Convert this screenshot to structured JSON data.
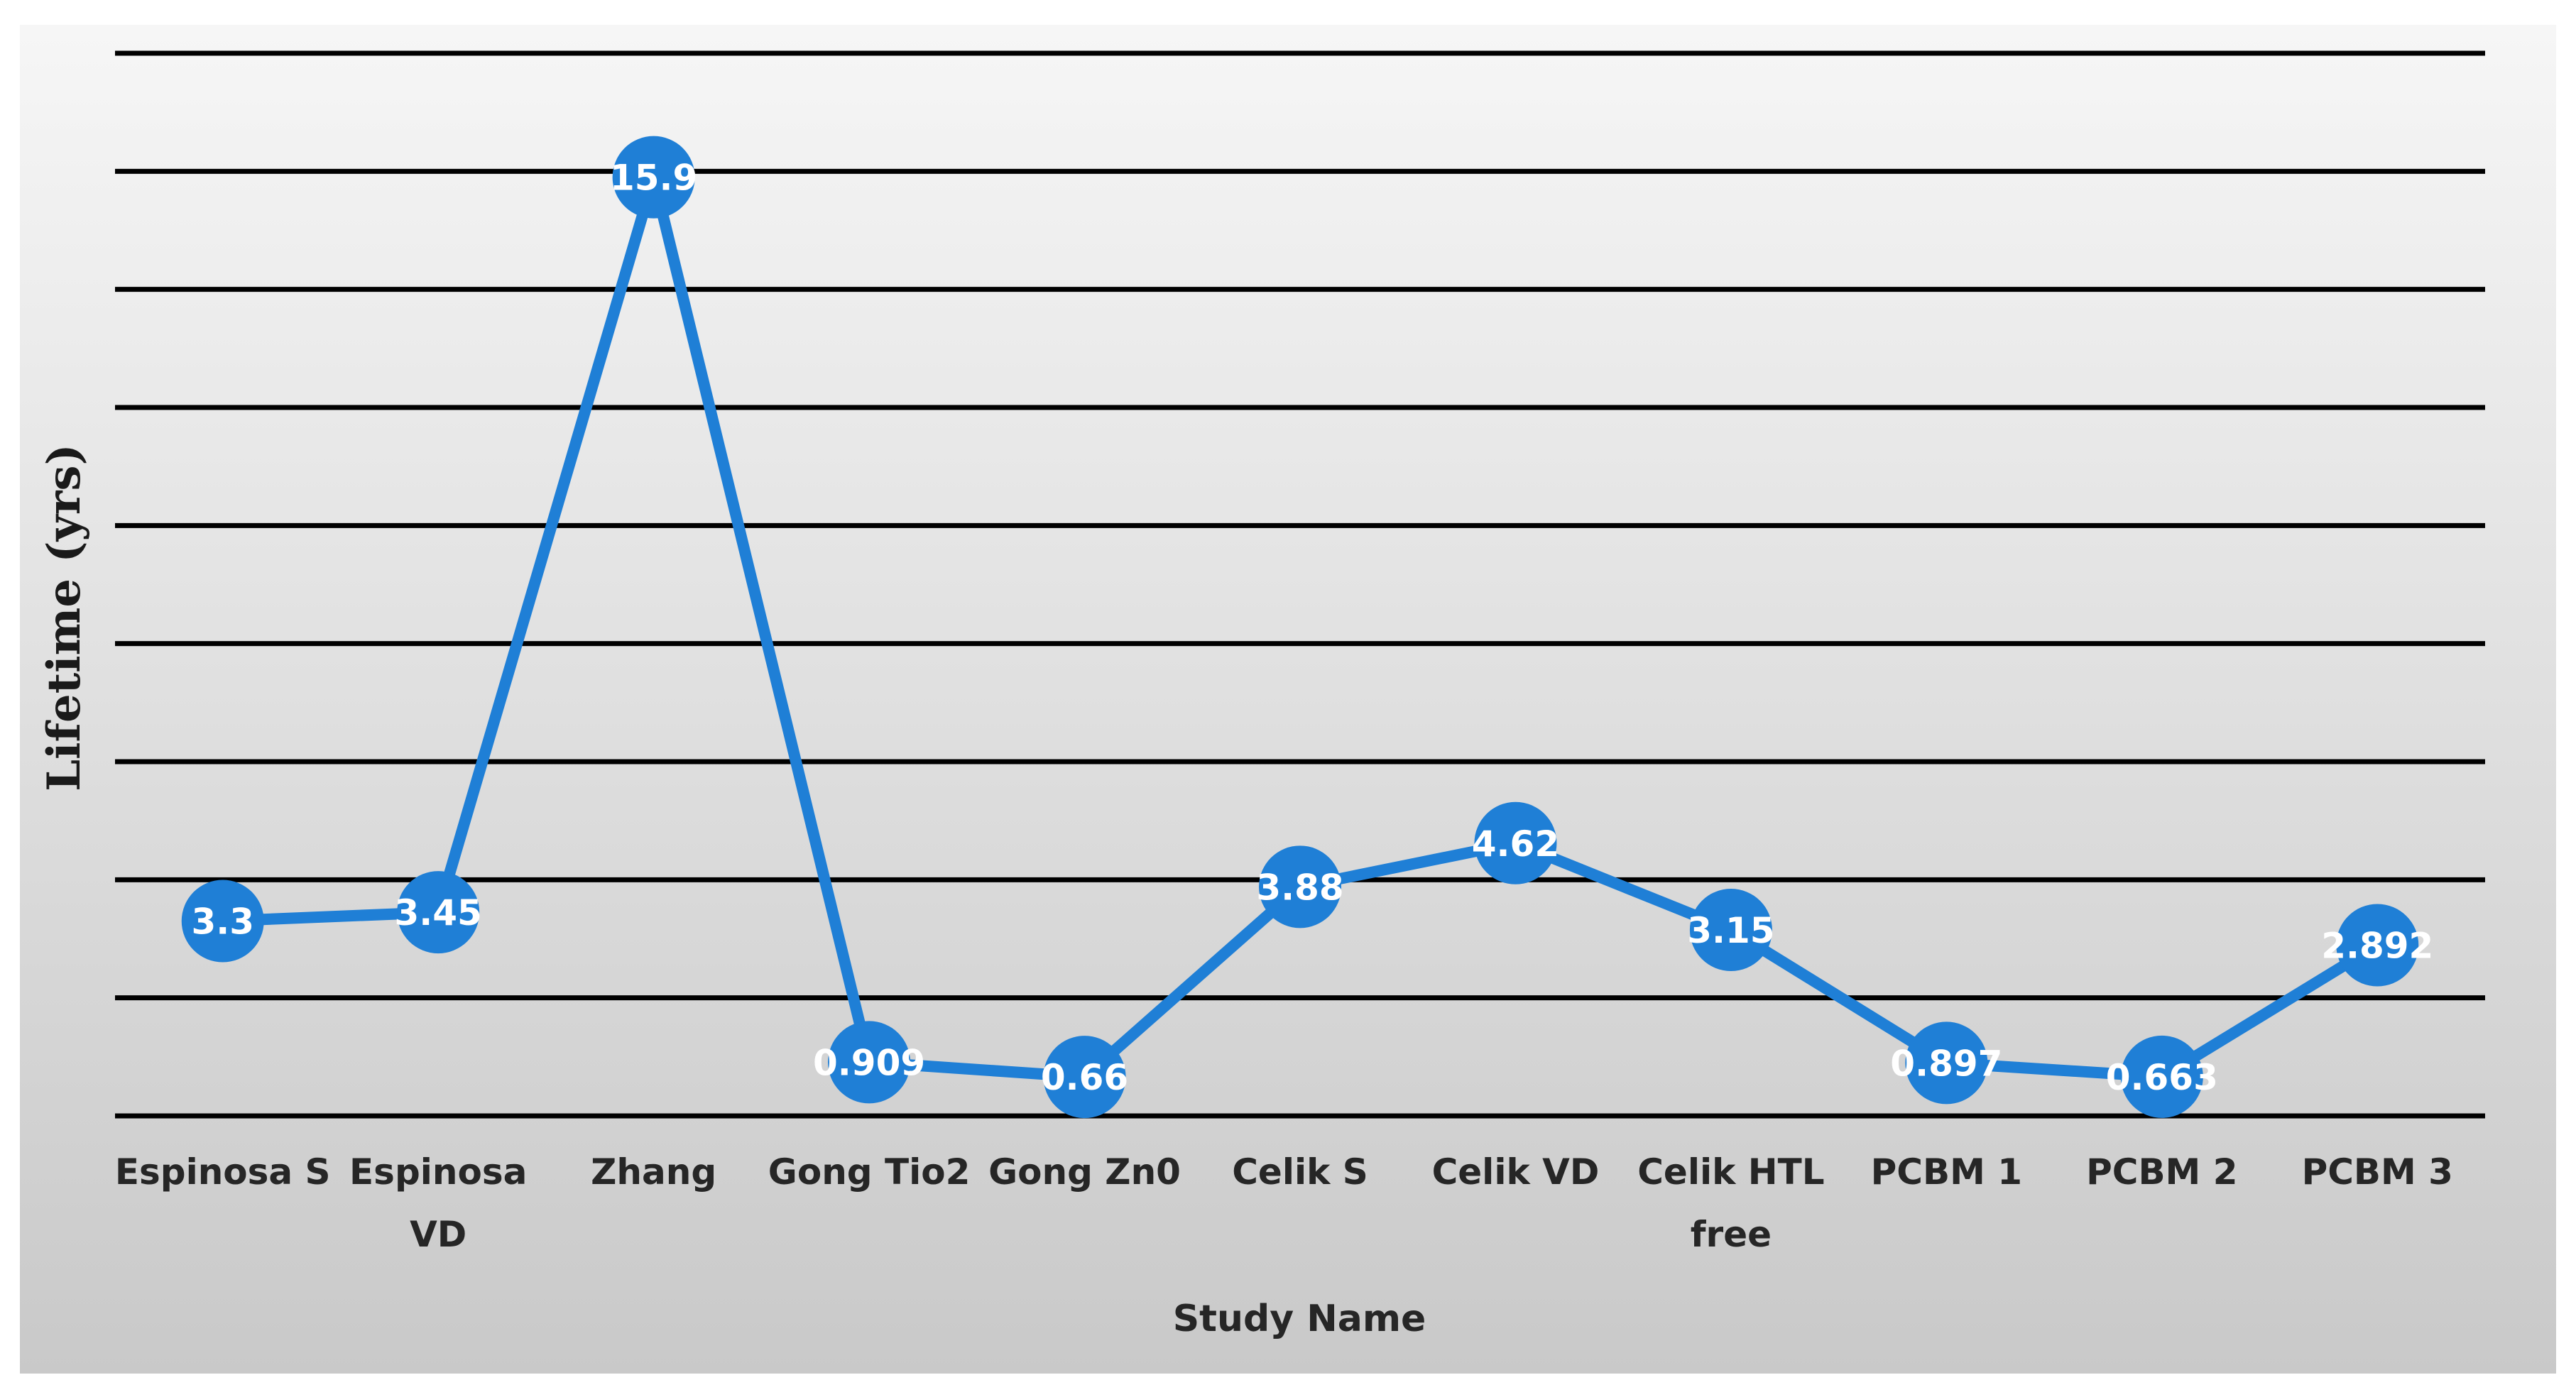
{
  "colors": {
    "series": "#1f7fd6",
    "gridline": "#000000",
    "background_light": "#f6f6f6",
    "background_dark": "#c9c9c9"
  },
  "chart_data": {
    "type": "line",
    "title": "",
    "xlabel": "Study Name",
    "ylabel": "Lifetime (yrs)",
    "categories": [
      "Espinosa S",
      "Espinosa VD",
      "Zhang",
      "Gong Tio2",
      "Gong Zn0",
      "Celik S",
      "Celik VD",
      "Celik HTL free",
      "PCBM 1",
      "PCBM  2",
      "PCBM  3"
    ],
    "category_lines": [
      [
        "Espinosa S"
      ],
      [
        "Espinosa",
        "VD"
      ],
      [
        "Zhang"
      ],
      [
        "Gong Tio2"
      ],
      [
        "Gong Zn0"
      ],
      [
        "Celik S"
      ],
      [
        "Celik VD"
      ],
      [
        "Celik HTL",
        "free"
      ],
      [
        "PCBM 1"
      ],
      [
        "PCBM  2"
      ],
      [
        "PCBM  3"
      ]
    ],
    "series": [
      {
        "values": [
          3.3,
          3.45,
          15.9,
          0.909,
          0.66,
          3.88,
          4.62,
          3.15,
          0.897,
          0.663,
          2.892
        ],
        "labels": [
          "3.3",
          "3.45",
          "15.9",
          "0.909",
          "0.66",
          "3.88",
          "4.62",
          "3.15",
          "0.897",
          "0.663",
          "2.892"
        ]
      }
    ],
    "ylim": [
      0,
      18
    ],
    "gridlines": [
      0,
      2,
      4,
      6,
      8,
      10,
      12,
      14,
      16,
      18
    ],
    "grid": true,
    "legend": "none",
    "y_tick_labels_shown": false
  }
}
